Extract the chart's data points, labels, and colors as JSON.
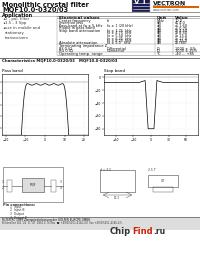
{
  "title_line1": "Monolithic crystal filter",
  "title_line2": "MQF10.0-0320/03",
  "bg_color": "#ffffff",
  "app_label": "Application",
  "app_bullets": [
    "2 - pol. filter",
    "1.5 - 3 Vpp",
    "use in mobile and\nstationary transceivers"
  ],
  "col_headers": [
    "Electrical values",
    "Unit",
    "Value"
  ],
  "rows": [
    [
      "Center frequency",
      "fo",
      "MHz",
      "10.0"
    ],
    [
      "Insertion loss",
      "",
      "dB",
      "≤ 4.0"
    ],
    [
      "Pass band at fo ± 5 kHz",
      "fo ± 1 (20 kHz)",
      "dB",
      "≤ 1.60"
    ],
    [
      "Ripple in pass band",
      "",
      "dB",
      "≤ 0.75"
    ],
    [
      "Stop band attenuation",
      "fo ± 3.75  kHz",
      "dB",
      "≥ 4.50"
    ],
    [
      "",
      "fo ± 4.75  kHz",
      "dB",
      "≥ 8.50"
    ],
    [
      "",
      "fo ± 5.50  kHz",
      "dB",
      "≥ 13.0"
    ],
    [
      "",
      "fo ± 6.25  kHz",
      "dB",
      "≥ 17.0"
    ],
    [
      "",
      "fo ± 8.25  kHz",
      "dB",
      "≥ 25.0"
    ],
    [
      "Absolute attenuation",
      "fo ± 5.0   kHz",
      "dB",
      "≥ (80)"
    ]
  ],
  "term_label": "Terminating impedance Z",
  "term_rows": [
    [
      "RF 0 (Ω",
      "Differential",
      "Ω",
      "1000 ±  5%"
    ],
    [
      "RG 0 (Ω",
      "Connector",
      "Ω",
      "1000 ± 25%"
    ]
  ],
  "temp_label": "Operating temp. range",
  "temp_unit": "°C",
  "temp_value": "-40 ... +85",
  "chart_label": "Characteristics MQF10.0-0320/03",
  "pass_band": "Pass band",
  "stop_band": "Stop band",
  "pin_label": "Pin connections:",
  "pins": [
    "1  Input",
    "2  Input B",
    "3  Output",
    "4  Output B"
  ],
  "footer1": "FILTER RC 1999 Zweigniederlassung der GOLFER EUROPE GMBH",
  "footer2": "Birkenallee 161 1/2  D - 47  4950 4  Tel-fax  ☎ +49(0)5251-4145-4 0  Fax +49(0)5251-4145-4 5",
  "chipfind": "ChipFind.ru",
  "vectron": "VECTRON",
  "intl": "INTERNATIONAL"
}
